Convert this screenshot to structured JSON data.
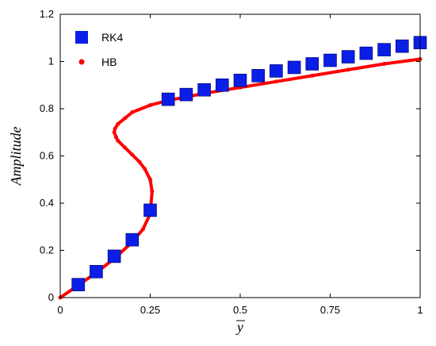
{
  "chart_data": {
    "type": "scatter",
    "xlabel": "y",
    "ylabel": "Amplitude",
    "xlim": [
      0,
      1
    ],
    "ylim": [
      0,
      1.2
    ],
    "xticks": [
      {
        "value": 0,
        "label": "0"
      },
      {
        "value": 0.25,
        "label": "0.25"
      },
      {
        "value": 0.5,
        "label": "0.5"
      },
      {
        "value": 0.75,
        "label": "0.75"
      },
      {
        "value": 1,
        "label": "1"
      }
    ],
    "yticks": [
      {
        "value": 0,
        "label": "0"
      },
      {
        "value": 0.2,
        "label": "0.2"
      },
      {
        "value": 0.4,
        "label": "0.4"
      },
      {
        "value": 0.6,
        "label": "0.6"
      },
      {
        "value": 0.8,
        "label": "0.8"
      },
      {
        "value": 1.0,
        "label": "1"
      },
      {
        "value": 1.2,
        "label": "1.2"
      }
    ],
    "grid": false,
    "legend_position": "top-left",
    "series": [
      {
        "name": "RK4",
        "marker": "square",
        "color": "#0a1ee6",
        "x": [
          0.05,
          0.1,
          0.15,
          0.2,
          0.25,
          0.3,
          0.35,
          0.4,
          0.45,
          0.5,
          0.55,
          0.6,
          0.65,
          0.7,
          0.75,
          0.8,
          0.85,
          0.9,
          0.95,
          1.0
        ],
        "y": [
          0.055,
          0.11,
          0.175,
          0.245,
          0.37,
          0.84,
          0.86,
          0.88,
          0.9,
          0.92,
          0.94,
          0.96,
          0.975,
          0.99,
          1.005,
          1.02,
          1.035,
          1.05,
          1.065,
          1.08
        ]
      },
      {
        "name": "HB",
        "marker": "dot",
        "color": "#ff0000",
        "x": [
          0,
          0.05,
          0.1,
          0.15,
          0.2,
          0.23,
          0.25,
          0.255,
          0.25,
          0.235,
          0.22,
          0.2,
          0.18,
          0.16,
          0.155,
          0.15,
          0.152,
          0.16,
          0.18,
          0.2,
          0.25,
          0.3,
          0.4,
          0.5,
          0.6,
          0.7,
          0.8,
          0.9,
          1.0
        ],
        "y": [
          0,
          0.052,
          0.106,
          0.165,
          0.235,
          0.29,
          0.355,
          0.45,
          0.5,
          0.545,
          0.575,
          0.605,
          0.635,
          0.665,
          0.68,
          0.7,
          0.715,
          0.735,
          0.76,
          0.785,
          0.815,
          0.835,
          0.865,
          0.89,
          0.915,
          0.94,
          0.965,
          0.99,
          1.01
        ]
      }
    ]
  }
}
